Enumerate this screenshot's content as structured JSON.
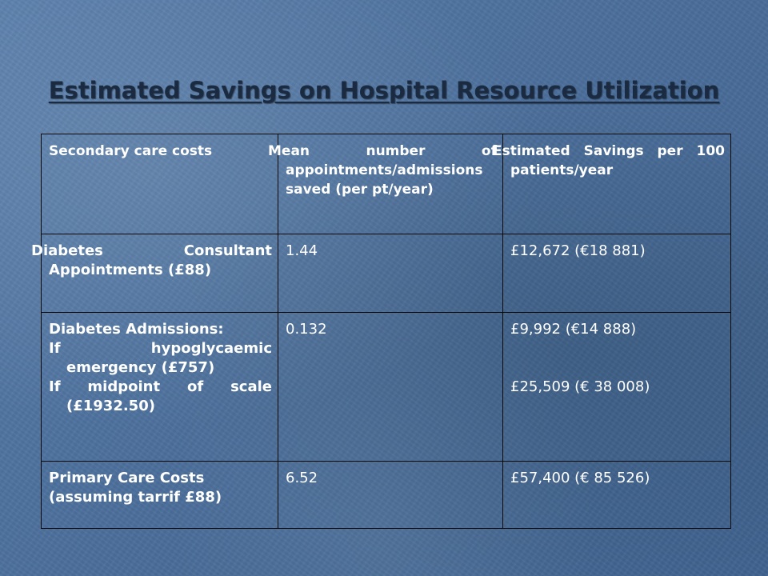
{
  "title": "Estimated Savings on Hospital Resource Utilization",
  "table": {
    "headers": [
      "Secondary care costs",
      "Mean number of appointments/admissions saved (per pt/year)",
      "Estimated Savings per 100 patients/year"
    ],
    "rows": [
      {
        "label": "Diabetes Consultant Appointments (£88)",
        "mean": "1.44",
        "savings": "£12,672 (€18 881)"
      },
      {
        "label_heading": "Diabetes Admissions:",
        "label_line1": "If hypoglycaemic emergency (£757)",
        "label_line2": "If midpoint of scale (£1932.50)",
        "mean": "0.132",
        "savings_1": "£9,992 (€14 888)",
        "savings_2": "£25,509 (€ 38 008)"
      },
      {
        "label": "Primary Care Costs (assuming tarrif £88)",
        "mean": "6.52",
        "savings": "£57,400 (€ 85 526)"
      }
    ]
  },
  "colors": {
    "background": "#4a6e9a",
    "title_text": "#1a2a40",
    "table_text": "#ffffff",
    "table_border": "#0a0a0a"
  }
}
